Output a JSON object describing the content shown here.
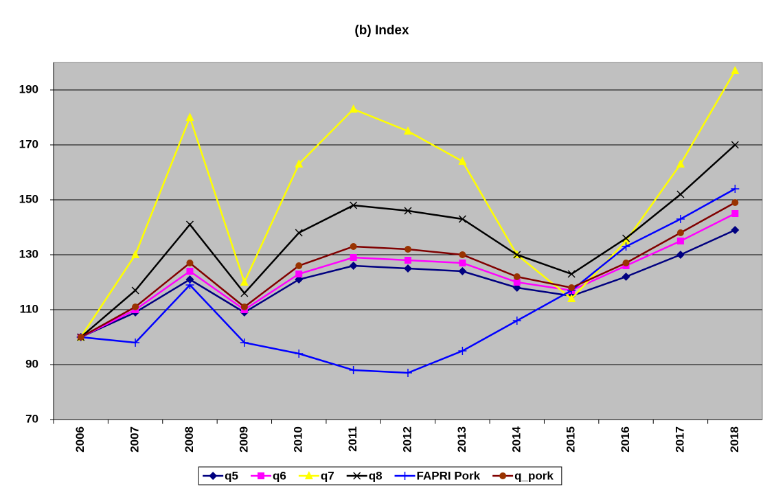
{
  "chart_data": {
    "type": "line",
    "title": "(b) Index",
    "categories": [
      "2006",
      "2007",
      "2008",
      "2009",
      "2010",
      "2011",
      "2012",
      "2013",
      "2014",
      "2015",
      "2016",
      "2017",
      "2018"
    ],
    "series": [
      {
        "name": "q5",
        "color": "#000080",
        "marker": "diamond",
        "values": [
          100,
          109,
          121,
          109,
          121,
          126,
          125,
          124,
          118,
          115,
          122,
          130,
          139
        ]
      },
      {
        "name": "q6",
        "color": "#ff00ff",
        "marker": "square",
        "values": [
          100,
          110,
          124,
          110,
          123,
          129,
          128,
          127,
          120,
          117,
          126,
          135,
          145
        ]
      },
      {
        "name": "q7",
        "color": "#ffff00",
        "marker": "triangle",
        "values": [
          100,
          130,
          180,
          120,
          163,
          183,
          175,
          164,
          130,
          114,
          135,
          163,
          197
        ]
      },
      {
        "name": "q8",
        "color": "#000000",
        "marker": "x",
        "values": [
          100,
          117,
          141,
          116,
          138,
          148,
          146,
          143,
          130,
          123,
          136,
          152,
          170
        ]
      },
      {
        "name": "FAPRI Pork",
        "color": "#0000ff",
        "marker": "plus",
        "values": [
          100,
          98,
          119,
          98,
          94,
          88,
          87,
          95,
          106,
          117,
          133,
          143,
          154
        ]
      },
      {
        "name": "q_pork",
        "color": "#800000",
        "marker": "circle",
        "values": [
          100,
          111,
          127,
          111,
          126,
          133,
          132,
          130,
          122,
          118,
          127,
          138,
          149
        ]
      }
    ],
    "ylim": [
      70,
      200
    ],
    "yticks": [
      70,
      90,
      110,
      130,
      150,
      170,
      190
    ],
    "grid": true,
    "legend": "bottom"
  }
}
